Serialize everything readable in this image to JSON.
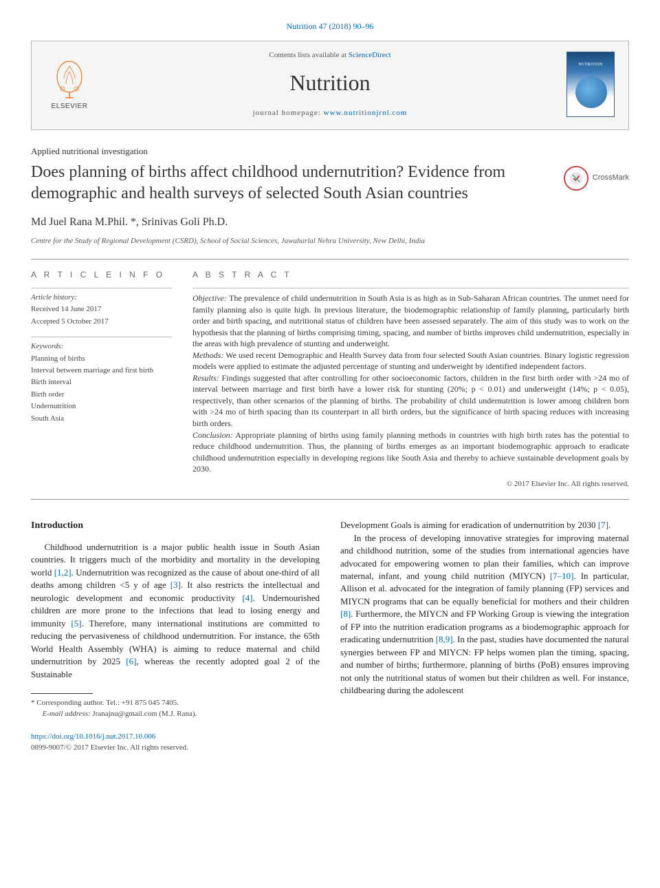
{
  "header": {
    "topLink": "Nutrition 47 (2018) 90–96",
    "contentsPrefix": "Contents lists available at ",
    "contentsLink": "ScienceDirect",
    "journal": "Nutrition",
    "homepagePrefix": "journal homepage: ",
    "homepageLink": "www.nutritionjrnl.com",
    "elsevier": "ELSEVIER"
  },
  "article": {
    "category": "Applied nutritional investigation",
    "title": "Does planning of births affect childhood undernutrition? Evidence from demographic and health surveys of selected South Asian countries",
    "crossmark": "CrossMark",
    "authors": "Md Juel Rana M.Phil. *, Srinivas Goli Ph.D.",
    "affiliation": "Centre for the Study of Regional Development (CSRD), School of Social Sciences, Jawaharlal Nehru University, New Delhi, India"
  },
  "info": {
    "heading": "A R T I C L E   I N F O",
    "historyLabel": "Article history:",
    "received": "Received 14 June 2017",
    "accepted": "Accepted 5 October 2017",
    "keywordsLabel": "Keywords:",
    "keywords": [
      "Planning of births",
      "Interval between marriage and first birth",
      "Birth interval",
      "Birth order",
      "Undernutrition",
      "South Asia"
    ]
  },
  "abstract": {
    "heading": "A B S T R A C T",
    "objectiveLabel": "Objective:",
    "objective": " The prevalence of child undernutrition in South Asia is as high as in Sub-Saharan African countries. The unmet need for family planning also is quite high. In previous literature, the biodemographic relationship of family planning, particularly birth order and birth spacing, and nutritional status of children have been assessed separately. The aim of this study was to work on the hypothesis that the planning of births comprising timing, spacing, and number of births improves child undernutrition, especially in the areas with high prevalence of stunting and underweight.",
    "methodsLabel": "Methods:",
    "methods": " We used recent Demographic and Health Survey data from four selected South Asian countries. Binary logistic regression models were applied to estimate the adjusted percentage of stunting and underweight by identified independent factors.",
    "resultsLabel": "Results:",
    "results": " Findings suggested that after controlling for other socioeconomic factors, children in the first birth order with >24 mo of interval between marriage and first birth have a lower risk for stunting (20%; p < 0.01) and underweight (14%; p < 0.05), respectively, than other scenarios of the planning of births. The probability of child undernutrition is lower among children born with >24 mo of birth spacing than its counterpart in all birth orders, but the significance of birth spacing reduces with increasing birth orders.",
    "conclusionLabel": "Conclusion:",
    "conclusion": " Appropriate planning of births using family planning methods in countries with high birth rates has the potential to reduce childhood undernutrition. Thus, the planning of births emerges as an important biodemographic approach to eradicate childhood undernutrition especially in developing regions like South Asia and thereby to achieve sustainable development goals by 2030.",
    "copyright": "© 2017 Elsevier Inc. All rights reserved."
  },
  "body": {
    "introHeading": "Introduction",
    "leftPara": "Childhood undernutrition is a major public health issue in South Asian countries. It triggers much of the morbidity and mortality in the developing world [1,2]. Undernutrition was recognized as the cause of about one-third of all deaths among children <5 y of age [3]. It also restricts the intellectual and neurologic development and economic productivity [4]. Undernourished children are more prone to the infections that lead to losing energy and immunity [5]. Therefore, many international institutions are committed to reducing the pervasiveness of childhood undernutrition. For instance, the 65th World Health Assembly (WHA) is aiming to reduce maternal and child undernutrition by 2025 [6], whereas the recently adopted goal 2 of the Sustainable",
    "rightPara1": "Development Goals is aiming for eradication of undernutrition by 2030 [7].",
    "rightPara2": "In the process of developing innovative strategies for improving maternal and childhood nutrition, some of the studies from international agencies have advocated for empowering women to plan their families, which can improve maternal, infant, and young child nutrition (MIYCN) [7–10]. In particular, Allison et al. advocated for the integration of family planning (FP) services and MIYCN programs that can be equally beneficial for mothers and their children [8]. Furthermore, the MIYCN and FP Working Group is viewing the integration of FP into the nutrition eradication programs as a biodemographic approach for eradicating undernutrition [8,9]. In the past, studies have documented the natural synergies between FP and MIYCN: FP helps women plan the timing, spacing, and number of births; furthermore, planning of births (PoB) ensures improving not only the nutritional status of women but their children as well. For instance, childbearing during the adolescent"
  },
  "footer": {
    "corrLabel": "* Corresponding author. Tel.: +91 875 045 7405.",
    "emailLabel": "E-mail address:",
    "email": " Jranajnu@gmail.com (M.J. Rana).",
    "doi": "https://doi.org/10.1016/j.nut.2017.10.006",
    "issn": "0899-9007/© 2017 Elsevier Inc. All rights reserved."
  },
  "colors": {
    "link": "#0066b3",
    "text": "#231f20",
    "border": "#b8b8b8",
    "headerBg": "#f5f5f3"
  }
}
